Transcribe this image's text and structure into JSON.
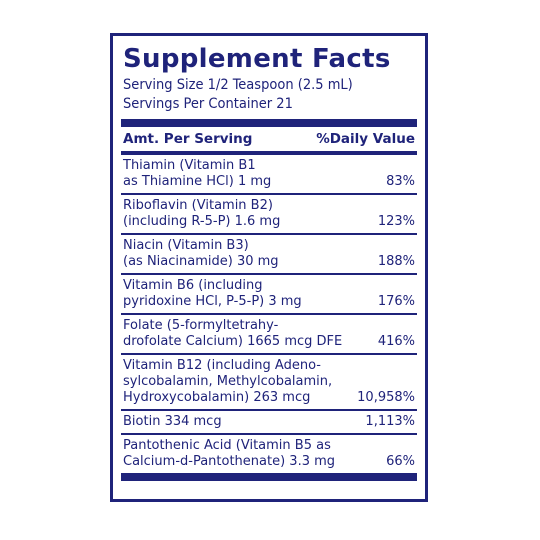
{
  "panel": {
    "title": "Supplement Facts",
    "serving_size": "Serving Size 1/2 Teaspoon (2.5 mL)",
    "servings_per_container": "Servings Per Container 21",
    "header_amount": "Amt. Per Serving",
    "header_daily_value": "%Daily Value"
  },
  "nutrients": [
    {
      "lines": [
        "Thiamin (Vitamin B1",
        "as Thiamine HCl)   1 mg"
      ],
      "dv": "83%"
    },
    {
      "lines": [
        "Riboflavin (Vitamin B2)",
        "(including R-5-P)   1.6 mg"
      ],
      "dv": "123%"
    },
    {
      "lines": [
        "Niacin (Vitamin B3)",
        "(as Niacinamide)   30 mg"
      ],
      "dv": "188%"
    },
    {
      "lines": [
        "Vitamin B6 (including",
        "pyridoxine HCl, P-5-P)   3 mg"
      ],
      "dv": "176%"
    },
    {
      "lines": [
        "Folate (5-formyltetrahy-",
        "drofolate Calcium) 1665 mcg DFE"
      ],
      "dv": "416%"
    },
    {
      "lines": [
        "Vitamin B12 (including Adeno-",
        "sylcobalamin, Methylcobalamin,",
        "Hydroxycobalamin)  263 mcg"
      ],
      "dv": "10,958%"
    },
    {
      "lines": [
        "Biotin   334 mcg"
      ],
      "dv": "1,113%"
    },
    {
      "lines": [
        "Pantothenic Acid (Vitamin B5 as",
        "Calcium-d-Pantothenate)  3.3 mg"
      ],
      "dv": "66%"
    }
  ],
  "colors": {
    "ink": "#1f237a",
    "background": "#ffffff"
  }
}
